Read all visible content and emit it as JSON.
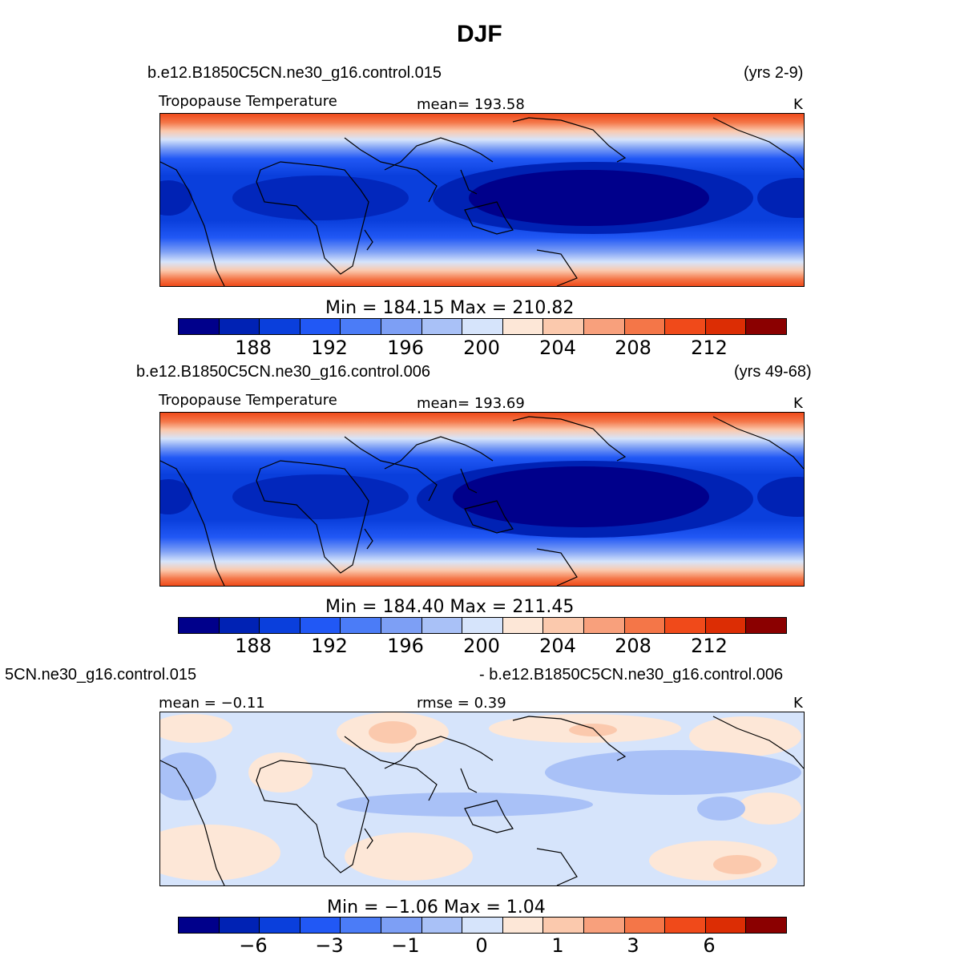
{
  "title": "DJF",
  "colors": [
    "#00008b",
    "#0022b4",
    "#0a3fdc",
    "#2158f5",
    "#4b7cf7",
    "#7d9ff5",
    "#a9c1f7",
    "#d6e4fb",
    "#fde7d7",
    "#fbc9ad",
    "#f8a07c",
    "#f47648",
    "#f04a1a",
    "#dc2d04",
    "#b71c0a",
    "#8b0000"
  ],
  "panels": [
    {
      "case_label": "b.e12.B1850C5CN.ne30_g16.control.015",
      "years": "(yrs 2-9)",
      "variable": "Tropopause Temperature",
      "mean_text": "mean=  193.58",
      "units": "K",
      "minmax_text": "Min  =  184.15  Max  =  210.82",
      "ticks": [
        "188",
        "192",
        "196",
        "200",
        "204",
        "208",
        "212"
      ]
    },
    {
      "case_label": "b.e12.B1850C5CN.ne30_g16.control.006",
      "years": "(yrs 49-68)",
      "variable": "Tropopause Temperature",
      "mean_text": "mean=  193.69",
      "units": "K",
      "minmax_text": "Min  =  184.40  Max  =  211.45",
      "ticks": [
        "188",
        "192",
        "196",
        "200",
        "204",
        "208",
        "212"
      ]
    },
    {
      "case_label": "5CN.ne30_g16.control.015",
      "case_label_right": "- b.e12.B1850C5CN.ne30_g16.control.006",
      "mean_text": "mean  =    −0.11",
      "rmse_text": "rmse  =      0.39",
      "units": "K",
      "minmax_text": "Min  =    −1.06  Max  =      1.04",
      "ticks": [
        "−6",
        "−3",
        "−1",
        "0",
        "1",
        "3",
        "6"
      ]
    }
  ]
}
